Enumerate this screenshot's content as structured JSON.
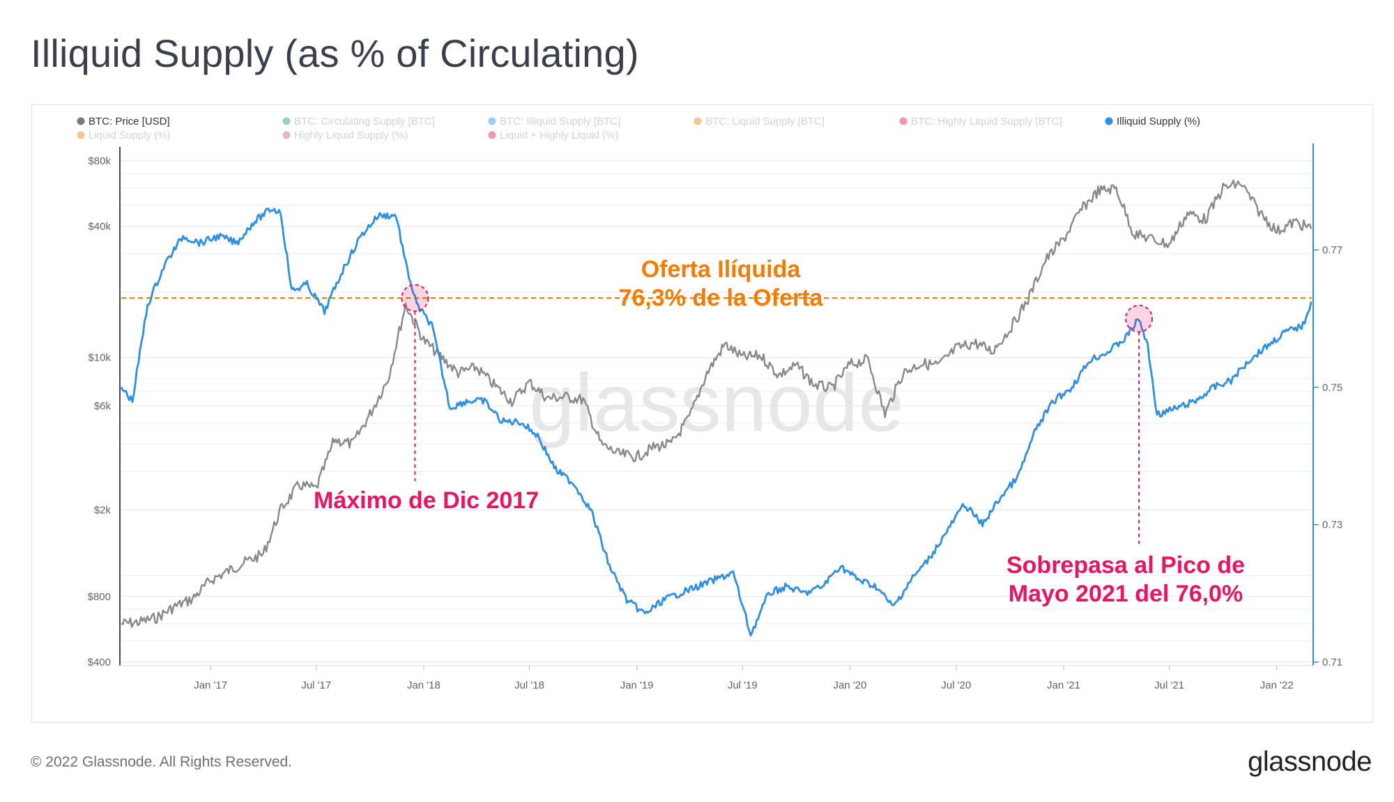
{
  "header": {
    "title": "Illiquid Supply (as % of Circulating)"
  },
  "footer": {
    "copyright": "© 2022 Glassnode. All Rights Reserved.",
    "brand": "glassnode"
  },
  "watermark": "glassnode",
  "colors": {
    "price": "#888888",
    "illiquid": "#2b8fe8",
    "orange": "#f57c00",
    "pink": "#ea1462",
    "grid": "#ececec"
  },
  "legend": [
    {
      "label": "BTC: Price [USD]",
      "color": "#7a7a7a",
      "active": true
    },
    {
      "label": "BTC: Circulating Supply [BTC]",
      "color": "#1a9e6a",
      "active": false
    },
    {
      "label": "BTC: Illiquid Supply [BTC]",
      "color": "#2b8fe8",
      "active": false
    },
    {
      "label": "BTC: Liquid Supply [BTC]",
      "color": "#f57c00",
      "active": false
    },
    {
      "label": "BTC: Highly Liquid Supply [BTC]",
      "color": "#ea1462",
      "active": false
    },
    {
      "label": "Illiquid Supply (%)",
      "color": "#2b8fe8",
      "active": true
    },
    {
      "label": "Liquid Supply (%)",
      "color": "#f57c00",
      "active": false
    },
    {
      "label": "Highly Liquid Supply (%)",
      "color": "#d6587f",
      "active": false
    },
    {
      "label": "Liquid + Highly Liquid (%)",
      "color": "#ea1462",
      "active": false
    }
  ],
  "annotations": {
    "oferta_line1": "Oferta Ilíquida",
    "oferta_line2": "76,3% de la Oferta",
    "maximo": "Máximo de Dic 2017",
    "sobrepasa_line1": "Sobrepasa al Pico de",
    "sobrepasa_line2": "Mayo 2021 del 76,0%"
  },
  "chart_data": {
    "type": "line",
    "title": "Illiquid Supply (as % of Circulating)",
    "x_ticks": [
      "Jan '17",
      "Jul '17",
      "Jan '18",
      "Jul '18",
      "Jan '19",
      "Jul '19",
      "Jan '20",
      "Jul '20",
      "Jan '21",
      "Jul '21",
      "Jan '22"
    ],
    "x_range": [
      "2016-08",
      "2022-03"
    ],
    "y_left": {
      "label": "BTC: Price [USD]",
      "scale": "log",
      "ticks": [
        "$400",
        "$800",
        "$2k",
        "$6k",
        "$10k",
        "$40k",
        "$80k"
      ],
      "range": [
        400,
        80000
      ]
    },
    "y_right": {
      "label": "Illiquid Supply (%)",
      "scale": "linear",
      "ticks": [
        "0.71",
        "0.73",
        "0.75",
        "0.77"
      ],
      "range": [
        0.71,
        0.7855
      ]
    },
    "reference_line": {
      "value": 0.763,
      "label": "Oferta Ilíquida 76,3% de la Oferta"
    },
    "markers": [
      {
        "date": "2017-12",
        "label": "Máximo de Dic 2017"
      },
      {
        "date": "2021-05",
        "value": 0.76,
        "label": "Sobrepasa al Pico de Mayo 2021 del 76,0%"
      }
    ],
    "series": [
      {
        "name": "BTC: Price [USD]",
        "axis": "left",
        "color": "#888888",
        "points": [
          [
            "2016-08-01",
            600
          ],
          [
            "2016-09-01",
            610
          ],
          [
            "2016-10-01",
            640
          ],
          [
            "2016-11-01",
            720
          ],
          [
            "2016-12-01",
            780
          ],
          [
            "2017-01-01",
            950
          ],
          [
            "2017-02-01",
            1050
          ],
          [
            "2017-03-01",
            1150
          ],
          [
            "2017-04-01",
            1250
          ],
          [
            "2017-05-01",
            2000
          ],
          [
            "2017-06-01",
            2600
          ],
          [
            "2017-07-01",
            2500
          ],
          [
            "2017-08-01",
            4200
          ],
          [
            "2017-09-01",
            4000
          ],
          [
            "2017-10-01",
            5500
          ],
          [
            "2017-11-01",
            8000
          ],
          [
            "2017-12-01",
            17500
          ],
          [
            "2018-01-01",
            12000
          ],
          [
            "2018-02-01",
            10000
          ],
          [
            "2018-03-01",
            8500
          ],
          [
            "2018-04-01",
            9000
          ],
          [
            "2018-05-01",
            7500
          ],
          [
            "2018-06-01",
            6300
          ],
          [
            "2018-07-01",
            7700
          ],
          [
            "2018-08-01",
            6500
          ],
          [
            "2018-09-01",
            6600
          ],
          [
            "2018-10-01",
            6400
          ],
          [
            "2018-11-01",
            4000
          ],
          [
            "2018-12-01",
            3600
          ],
          [
            "2019-01-01",
            3500
          ],
          [
            "2019-02-01",
            3900
          ],
          [
            "2019-03-01",
            4000
          ],
          [
            "2019-04-01",
            5300
          ],
          [
            "2019-05-01",
            8500
          ],
          [
            "2019-06-01",
            11500
          ],
          [
            "2019-07-01",
            10000
          ],
          [
            "2019-08-01",
            10200
          ],
          [
            "2019-09-01",
            8300
          ],
          [
            "2019-10-01",
            9200
          ],
          [
            "2019-11-01",
            7500
          ],
          [
            "2019-12-01",
            7200
          ],
          [
            "2020-01-01",
            9300
          ],
          [
            "2020-02-01",
            9800
          ],
          [
            "2020-03-01",
            5500
          ],
          [
            "2020-04-01",
            8500
          ],
          [
            "2020-05-01",
            9400
          ],
          [
            "2020-06-01",
            9200
          ],
          [
            "2020-07-01",
            11000
          ],
          [
            "2020-08-01",
            11700
          ],
          [
            "2020-09-01",
            10700
          ],
          [
            "2020-10-01",
            13500
          ],
          [
            "2020-11-01",
            18500
          ],
          [
            "2020-12-01",
            28000
          ],
          [
            "2021-01-01",
            35000
          ],
          [
            "2021-02-01",
            48000
          ],
          [
            "2021-03-01",
            58000
          ],
          [
            "2021-04-01",
            60000
          ],
          [
            "2021-05-01",
            37000
          ],
          [
            "2021-06-01",
            35000
          ],
          [
            "2021-07-01",
            33000
          ],
          [
            "2021-08-01",
            46000
          ],
          [
            "2021-09-01",
            43000
          ],
          [
            "2021-10-01",
            60000
          ],
          [
            "2021-11-01",
            63000
          ],
          [
            "2021-12-01",
            47000
          ],
          [
            "2022-01-01",
            38000
          ],
          [
            "2022-02-01",
            42000
          ],
          [
            "2022-03-01",
            39000
          ]
        ]
      },
      {
        "name": "Illiquid Supply (%)",
        "axis": "right",
        "color": "#2b8fe8",
        "points": [
          [
            "2016-08-01",
            0.75
          ],
          [
            "2016-08-20",
            0.748
          ],
          [
            "2016-09-15",
            0.762
          ],
          [
            "2016-10-15",
            0.768
          ],
          [
            "2016-11-15",
            0.772
          ],
          [
            "2016-12-15",
            0.771
          ],
          [
            "2017-01-15",
            0.772
          ],
          [
            "2017-02-15",
            0.771
          ],
          [
            "2017-03-15",
            0.774
          ],
          [
            "2017-04-15",
            0.776
          ],
          [
            "2017-05-01",
            0.7755
          ],
          [
            "2017-05-20",
            0.764
          ],
          [
            "2017-06-15",
            0.765
          ],
          [
            "2017-07-15",
            0.761
          ],
          [
            "2017-08-15",
            0.767
          ],
          [
            "2017-09-15",
            0.772
          ],
          [
            "2017-10-15",
            0.775
          ],
          [
            "2017-11-15",
            0.775
          ],
          [
            "2017-12-01",
            0.768
          ],
          [
            "2017-12-20",
            0.762
          ],
          [
            "2018-01-15",
            0.759
          ],
          [
            "2018-02-15",
            0.747
          ],
          [
            "2018-03-15",
            0.748
          ],
          [
            "2018-04-15",
            0.748
          ],
          [
            "2018-05-15",
            0.745
          ],
          [
            "2018-06-15",
            0.745
          ],
          [
            "2018-07-15",
            0.743
          ],
          [
            "2018-08-15",
            0.738
          ],
          [
            "2018-09-15",
            0.736
          ],
          [
            "2018-10-15",
            0.732
          ],
          [
            "2018-11-15",
            0.724
          ],
          [
            "2018-12-15",
            0.719
          ],
          [
            "2019-01-15",
            0.717
          ],
          [
            "2019-02-15",
            0.719
          ],
          [
            "2019-03-15",
            0.72
          ],
          [
            "2019-04-15",
            0.721
          ],
          [
            "2019-05-15",
            0.722
          ],
          [
            "2019-06-15",
            0.723
          ],
          [
            "2019-07-15",
            0.714
          ],
          [
            "2019-08-15",
            0.72
          ],
          [
            "2019-09-15",
            0.721
          ],
          [
            "2019-10-15",
            0.72
          ],
          [
            "2019-11-15",
            0.721
          ],
          [
            "2019-12-15",
            0.724
          ],
          [
            "2020-01-15",
            0.722
          ],
          [
            "2020-02-15",
            0.721
          ],
          [
            "2020-03-15",
            0.718
          ],
          [
            "2020-04-15",
            0.722
          ],
          [
            "2020-05-15",
            0.725
          ],
          [
            "2020-06-15",
            0.729
          ],
          [
            "2020-07-15",
            0.733
          ],
          [
            "2020-08-15",
            0.73
          ],
          [
            "2020-09-15",
            0.734
          ],
          [
            "2020-10-15",
            0.737
          ],
          [
            "2020-11-15",
            0.744
          ],
          [
            "2020-12-15",
            0.748
          ],
          [
            "2021-01-15",
            0.75
          ],
          [
            "2021-02-15",
            0.754
          ],
          [
            "2021-03-15",
            0.755
          ],
          [
            "2021-04-15",
            0.757
          ],
          [
            "2021-05-10",
            0.76
          ],
          [
            "2021-05-25",
            0.756
          ],
          [
            "2021-06-10",
            0.746
          ],
          [
            "2021-07-15",
            0.747
          ],
          [
            "2021-08-15",
            0.748
          ],
          [
            "2021-09-15",
            0.75
          ],
          [
            "2021-10-15",
            0.751
          ],
          [
            "2021-11-15",
            0.754
          ],
          [
            "2021-12-15",
            0.756
          ],
          [
            "2022-01-15",
            0.758
          ],
          [
            "2022-02-15",
            0.759
          ],
          [
            "2022-03-01",
            0.7625
          ]
        ]
      }
    ]
  }
}
